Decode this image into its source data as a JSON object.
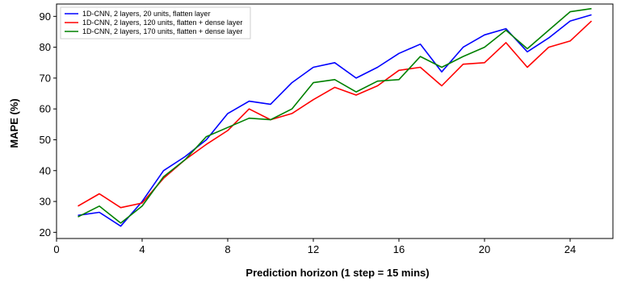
{
  "chart_data": {
    "type": "line",
    "title": "",
    "xlabel": "Prediction horizon (1 step = 15 mins)",
    "ylabel": "MAPE (%)",
    "xlim": [
      0,
      26
    ],
    "ylim": [
      18,
      94
    ],
    "xticks": [
      0,
      4,
      8,
      12,
      16,
      20,
      24
    ],
    "yticks": [
      20,
      30,
      40,
      50,
      60,
      70,
      80,
      90
    ],
    "grid": false,
    "legend_position": "top-left",
    "x": [
      1,
      2,
      3,
      4,
      5,
      6,
      7,
      8,
      9,
      10,
      11,
      12,
      13,
      14,
      15,
      16,
      17,
      18,
      19,
      20,
      21,
      22,
      23,
      24,
      25
    ],
    "series": [
      {
        "name": "1D-CNN, 2 layers, 20 units, flatten layer",
        "color": "#0000ff",
        "values": [
          25.5,
          26.5,
          22,
          30,
          40,
          44.5,
          50,
          58.5,
          62.5,
          61.5,
          68.5,
          73.5,
          75,
          70,
          73.5,
          78,
          81,
          72,
          80,
          84,
          86,
          78.5,
          83,
          88.5,
          90.5
        ]
      },
      {
        "name": "1D-CNN, 2 layers, 120 units, flatten + dense layer",
        "color": "#ff0000",
        "values": [
          28.5,
          32.5,
          28,
          29.5,
          37.5,
          43.5,
          48.5,
          53,
          60,
          56.5,
          58.5,
          63,
          67,
          64.5,
          67.5,
          72.5,
          73.5,
          67.5,
          74.5,
          75,
          81.5,
          73.5,
          80,
          82,
          88.5
        ]
      },
      {
        "name": "1D-CNN, 2 layers, 170 units, flatten + dense layer",
        "color": "#008000",
        "values": [
          25,
          28.5,
          23,
          28.5,
          38,
          43.5,
          51,
          54,
          57,
          56.5,
          60,
          68.5,
          69.5,
          65.5,
          69,
          69.5,
          77,
          73.5,
          77,
          80,
          85.5,
          79.5,
          85.5,
          91.5,
          92.5
        ]
      }
    ]
  }
}
